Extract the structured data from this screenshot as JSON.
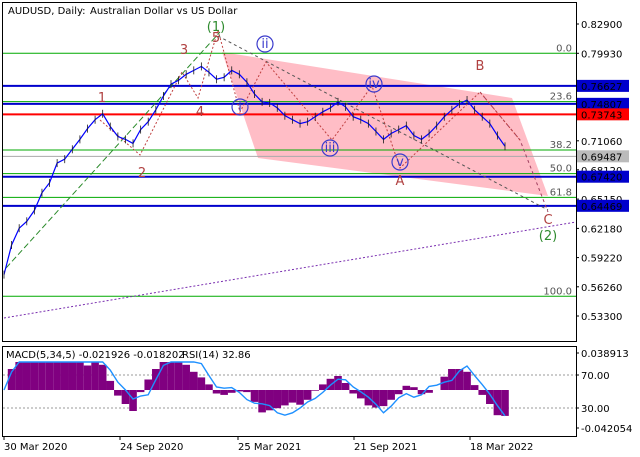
{
  "header": {
    "symbol": "AUDUSD, Daily:",
    "description": "Australian Dollar vs US Dollar"
  },
  "indicator_header": {
    "macd": "MACD(5,34,5) -0.021926 -0.018202",
    "rsi": "RSI(14) 32.86"
  },
  "colors": {
    "price_line": "#0000ff",
    "level_red": "#ff0000",
    "fib_green": "#00aa00",
    "channel_fill": "#ff9aa8",
    "wave_numbers": "#b04040",
    "wave_green": "#2e8b2e",
    "wave_circle": "#3a3acc",
    "trend_purple": "#7a2fb0",
    "macd_hist": "#800080",
    "macd_signal": "#1e90ff"
  },
  "chart_data": [
    {
      "type": "line",
      "name": "price",
      "y_ticks": [
        "0.82900",
        "0.79930",
        "0.76627",
        "0.74807",
        "0.73743",
        "0.71060",
        "0.69487",
        "0.68120",
        "0.67420",
        "0.65150",
        "0.64469",
        "0.62180",
        "0.59220",
        "0.56260",
        "0.53300"
      ],
      "x_ticks": [
        "30 Mar 2020",
        "24 Sep 2020",
        "25 Mar 2021",
        "21 Sep 2021",
        "18 Mar 2022"
      ],
      "ylim": [
        0.5165,
        0.8365
      ],
      "highlighted_levels": [
        {
          "label": "0.76627",
          "value": 0.76627,
          "color": "blue"
        },
        {
          "label": "0.74807",
          "value": 0.74807,
          "color": "blue"
        },
        {
          "label": "0.73743",
          "value": 0.73743,
          "color": "red"
        },
        {
          "label": "0.69487",
          "value": 0.69487,
          "color": "gray"
        },
        {
          "label": "0.67420",
          "value": 0.6742,
          "color": "blue"
        },
        {
          "label": "0.64469",
          "value": 0.64469,
          "color": "blue"
        }
      ],
      "fib_levels": [
        {
          "label": "0.0",
          "value": 0.7993
        },
        {
          "label": "23.6",
          "value": 0.7503
        },
        {
          "label": "38.2",
          "value": 0.7013
        },
        {
          "label": "50.0",
          "value": 0.6773
        },
        {
          "label": "61.8",
          "value": 0.6533
        },
        {
          "label": "100.0",
          "value": 0.553
        }
      ],
      "wave_labels": [
        "(1)",
        "1",
        "2",
        "3",
        "4",
        "5",
        "i",
        "ii",
        "iii",
        "iv",
        "v",
        "A",
        "B",
        "C",
        "(2)"
      ],
      "close_series": [
        0.575,
        0.605,
        0.622,
        0.629,
        0.64,
        0.658,
        0.668,
        0.688,
        0.692,
        0.702,
        0.712,
        0.723,
        0.732,
        0.738,
        0.725,
        0.715,
        0.712,
        0.708,
        0.722,
        0.73,
        0.742,
        0.756,
        0.768,
        0.772,
        0.778,
        0.782,
        0.786,
        0.78,
        0.773,
        0.775,
        0.782,
        0.778,
        0.77,
        0.758,
        0.75,
        0.749,
        0.744,
        0.736,
        0.732,
        0.728,
        0.73,
        0.735,
        0.74,
        0.744,
        0.75,
        0.745,
        0.735,
        0.732,
        0.728,
        0.72,
        0.712,
        0.718,
        0.722,
        0.726,
        0.716,
        0.712,
        0.718,
        0.726,
        0.735,
        0.742,
        0.748,
        0.752,
        0.742,
        0.735,
        0.728,
        0.716,
        0.705
      ],
      "rsi_ticks": [
        "70.00",
        "30.00"
      ],
      "macd_ticks": [
        "0.038913",
        "-0.042054"
      ]
    }
  ]
}
